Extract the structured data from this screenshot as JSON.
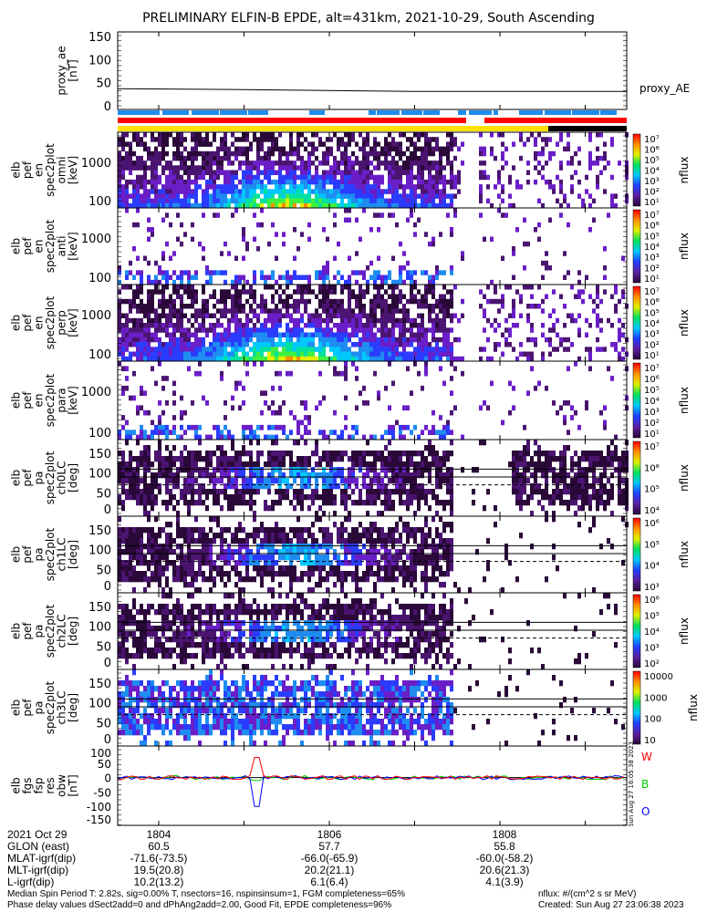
{
  "title": "PRELIMINARY ELFIN-B EPDE, alt=431km, 2021-10-29, South Ascending",
  "colors": {
    "blue_bar": "#1e8cf0",
    "red_bar": "#ff0000",
    "yellow_bar": "#ffe000",
    "black_bar": "#000000",
    "W": "#ff0000",
    "B": "#00d000",
    "O": "#0000ff"
  },
  "chart_data": [
    {
      "type": "line",
      "name": "proxy_ae",
      "ylabel_lines": [
        "proxy_ae",
        "[nT]"
      ],
      "yticks": [
        "0",
        "50",
        "100",
        "150"
      ],
      "ylim": [
        0,
        150
      ],
      "legend": "proxy_AE",
      "x": [
        1803.5,
        1805.0,
        1806.0,
        1807.0,
        1808.0,
        1809.5
      ],
      "values": [
        37,
        35,
        33,
        31,
        31,
        31
      ]
    },
    {
      "type": "heatmap",
      "name": "omni",
      "ylabel_lines": [
        "elb",
        "pef",
        "en",
        "spec2plot",
        "omni",
        "[keV]"
      ],
      "yticks": [
        "100",
        "1000"
      ],
      "ylim": [
        60,
        7000
      ],
      "yscale": "log",
      "colorbar": {
        "label": "nflux",
        "ticks": [
          "10⁷",
          "10⁶",
          "10⁵",
          "10⁴",
          "10³",
          "10²",
          "10¹"
        ]
      }
    },
    {
      "type": "heatmap",
      "name": "anti",
      "ylabel_lines": [
        "elb",
        "pef",
        "en",
        "spec2plot",
        "anti",
        "[keV]"
      ],
      "yticks": [
        "100",
        "1000"
      ],
      "ylim": [
        60,
        7000
      ],
      "yscale": "log",
      "colorbar": {
        "label": "nflux",
        "ticks": [
          "10⁷",
          "10⁶",
          "10⁵",
          "10⁴",
          "10³",
          "10²",
          "10¹"
        ]
      }
    },
    {
      "type": "heatmap",
      "name": "perp",
      "ylabel_lines": [
        "elb",
        "pef",
        "en",
        "spec2plot",
        "perp",
        "[keV]"
      ],
      "yticks": [
        "100",
        "1000"
      ],
      "ylim": [
        60,
        7000
      ],
      "yscale": "log",
      "colorbar": {
        "label": "nflux",
        "ticks": [
          "10⁷",
          "10⁶",
          "10⁵",
          "10⁴",
          "10³",
          "10²",
          "10¹"
        ]
      }
    },
    {
      "type": "heatmap",
      "name": "para",
      "ylabel_lines": [
        "elb",
        "pef",
        "en",
        "spec2plot",
        "para",
        "[keV]"
      ],
      "yticks": [
        "100",
        "1000"
      ],
      "ylim": [
        60,
        7000
      ],
      "yscale": "log",
      "colorbar": {
        "label": "nflux",
        "ticks": [
          "10⁷",
          "10⁶",
          "10⁵",
          "10⁴",
          "10³",
          "10²",
          "10¹"
        ]
      }
    },
    {
      "type": "heatmap",
      "name": "ch0LC",
      "ylabel_lines": [
        "elb",
        "pef",
        "pa",
        "spec2plot",
        "ch0LC",
        "[deg]"
      ],
      "yticks": [
        "0",
        "50",
        "100",
        "150"
      ],
      "ylim": [
        0,
        180
      ],
      "colorbar": {
        "label": "nflux",
        "ticks": [
          "10⁷",
          "10⁶",
          "10⁵",
          "10⁴"
        ]
      }
    },
    {
      "type": "heatmap",
      "name": "ch1LC",
      "ylabel_lines": [
        "elb",
        "pef",
        "pa",
        "spec2plot",
        "ch1LC",
        "[deg]"
      ],
      "yticks": [
        "0",
        "50",
        "100",
        "150"
      ],
      "ylim": [
        0,
        180
      ],
      "colorbar": {
        "label": "nflux",
        "ticks": [
          "10⁶",
          "10⁵",
          "10⁴",
          "10³"
        ]
      }
    },
    {
      "type": "heatmap",
      "name": "ch2LC",
      "ylabel_lines": [
        "elb",
        "pef",
        "pa",
        "spec2plot",
        "ch2LC",
        "[deg]"
      ],
      "yticks": [
        "0",
        "50",
        "100",
        "150"
      ],
      "ylim": [
        0,
        180
      ],
      "colorbar": {
        "label": "nflux",
        "ticks": [
          "10⁶",
          "10⁵",
          "10⁴",
          "10³",
          "10²"
        ]
      }
    },
    {
      "type": "heatmap",
      "name": "ch3LC",
      "ylabel_lines": [
        "elb",
        "pef",
        "pa",
        "spec2plot",
        "ch3LC",
        "[deg]"
      ],
      "yticks": [
        "0",
        "50",
        "100",
        "150"
      ],
      "ylim": [
        0,
        180
      ],
      "colorbar": {
        "label": "nflux",
        "ticks": [
          "10000",
          "1000",
          "100",
          "10"
        ]
      }
    },
    {
      "type": "line",
      "name": "fgs",
      "ylabel_lines": [
        "elb",
        "fgs",
        "fsp",
        "res",
        "obw",
        "[nT]"
      ],
      "yticks": [
        "-150",
        "-100",
        "-50",
        "0",
        "50",
        "100"
      ],
      "ylim": [
        -160,
        110
      ],
      "legend": [
        "W",
        "B",
        "O"
      ],
      "stamp": "Sun Aug 27 16:05:38 2023"
    }
  ],
  "xaxis": {
    "rows": [
      {
        "label": "2021 Oct 29",
        "values": [
          "1804",
          "1806",
          "1808"
        ]
      },
      {
        "label": "GLON (east)",
        "values": [
          "60.5",
          "57.7",
          "55.8"
        ]
      },
      {
        "label": "MLAT-igrf(dip)",
        "values": [
          "-71.6(-73.5)",
          "-66.0(-65.9)",
          "-60.0(-58.2)"
        ]
      },
      {
        "label": "MLT-igrf(dip)",
        "values": [
          "19.5(20.8)",
          "20.2(21.1)",
          "20.6(21.3)"
        ]
      },
      {
        "label": "L-igrf(dip)",
        "values": [
          "10.2(13.2)",
          "6.1(6.4)",
          "4.1(3.9)"
        ]
      }
    ]
  },
  "footer": {
    "line1": "Median Spin Period T: 2.82s, sig=0.00% T, nsectors=16, nspinsinsum=1, FGM completeness=65%",
    "line2": "Phase delay values dSect2add=0 and dPhAng2add=2.00, Good Fit, EPDE completeness=96%",
    "units": "nflux: #/(cm^2 s sr MeV)",
    "created": "Created: Sun Aug 27 23:06:38 2023"
  }
}
